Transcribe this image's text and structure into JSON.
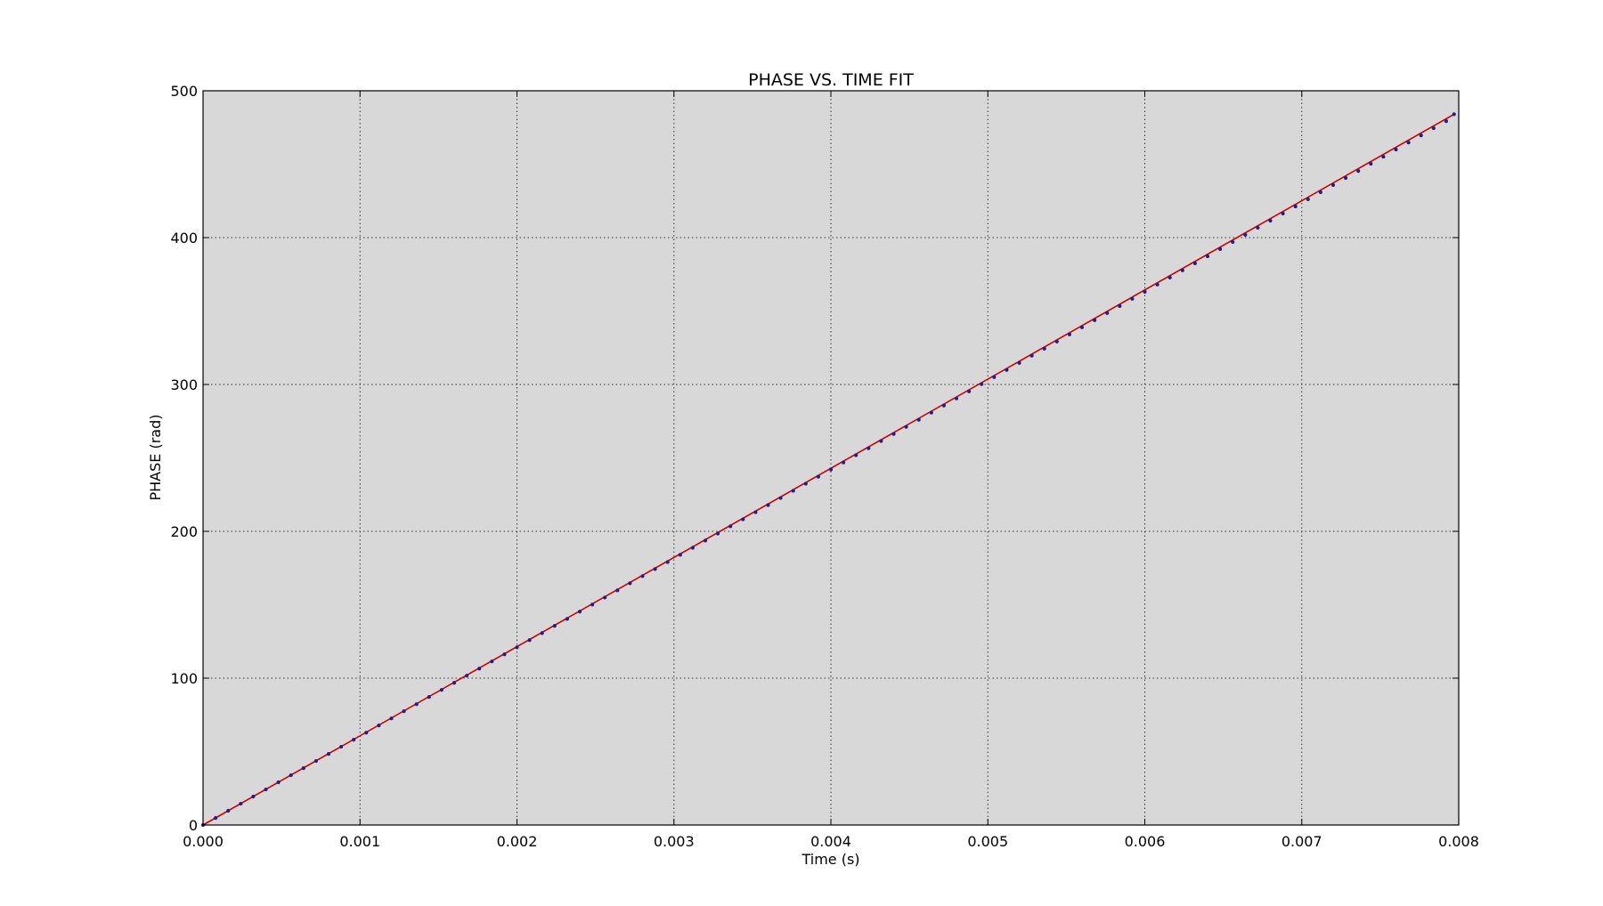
{
  "chart_data": {
    "type": "line",
    "title": "PHASE VS. TIME FIT",
    "xlabel": "Time (s)",
    "ylabel": "PHASE (rad)",
    "xlim": [
      0.0,
      0.008
    ],
    "ylim": [
      0,
      500
    ],
    "x_ticks": [
      "0.000",
      "0.001",
      "0.002",
      "0.003",
      "0.004",
      "0.005",
      "0.006",
      "0.007",
      "0.008"
    ],
    "y_ticks": [
      "0",
      "100",
      "200",
      "300",
      "400",
      "500"
    ],
    "grid": true,
    "background_color": "#d8d8d8",
    "series": [
      {
        "style": "points",
        "color": "#1f1f8f",
        "x": [
          0.0,
          8e-05,
          0.00016,
          0.00024,
          0.00032,
          0.0004,
          0.00048,
          0.00056,
          0.00064,
          0.00072,
          0.0008,
          0.00088,
          0.00096,
          0.00104,
          0.00112,
          0.0012,
          0.00128,
          0.00136,
          0.00144,
          0.00152,
          0.0016,
          0.00168,
          0.00176,
          0.00184,
          0.00192,
          0.002,
          0.00208,
          0.00216,
          0.00224,
          0.00232,
          0.0024,
          0.00248,
          0.00256,
          0.00264,
          0.00272,
          0.0028,
          0.00288,
          0.00296,
          0.00304,
          0.00312,
          0.0032,
          0.00328,
          0.00336,
          0.00344,
          0.00352,
          0.0036,
          0.00368,
          0.00376,
          0.00384,
          0.00392,
          0.004,
          0.00408,
          0.00416,
          0.00424,
          0.00432,
          0.0044,
          0.00448,
          0.00456,
          0.00464,
          0.00472,
          0.0048,
          0.00488,
          0.00496,
          0.00504,
          0.00512,
          0.0052,
          0.00528,
          0.00536,
          0.00544,
          0.00552,
          0.0056,
          0.00568,
          0.00576,
          0.00584,
          0.00592,
          0.006,
          0.00608,
          0.00616,
          0.00624,
          0.00632,
          0.0064,
          0.00648,
          0.00656,
          0.00664,
          0.00672,
          0.0068,
          0.00688,
          0.00696,
          0.00704,
          0.00712,
          0.0072,
          0.00728,
          0.00736,
          0.00744,
          0.00752,
          0.0076,
          0.00768,
          0.00776,
          0.00784,
          0.00792,
          0.00797
        ],
        "y": [
          0.0,
          4.8,
          9.7,
          14.5,
          19.4,
          24.2,
          29.1,
          33.9,
          38.7,
          43.6,
          48.4,
          53.3,
          58.1,
          62.9,
          67.8,
          72.6,
          77.5,
          82.3,
          87.2,
          92.0,
          96.8,
          101.7,
          106.5,
          111.4,
          116.2,
          121.0,
          125.9,
          130.7,
          135.6,
          140.4,
          145.3,
          150.1,
          154.9,
          159.8,
          164.6,
          169.5,
          174.3,
          179.1,
          184.0,
          188.8,
          193.7,
          198.5,
          203.4,
          208.2,
          213.0,
          217.9,
          222.7,
          227.6,
          232.4,
          237.2,
          242.1,
          246.9,
          251.8,
          256.6,
          261.5,
          266.3,
          271.1,
          276.0,
          280.8,
          285.7,
          290.5,
          295.3,
          300.2,
          305.0,
          309.9,
          314.7,
          319.6,
          324.4,
          329.2,
          334.1,
          338.9,
          343.8,
          348.6,
          353.4,
          358.3,
          363.1,
          368.0,
          372.8,
          377.7,
          382.5,
          387.3,
          392.2,
          397.0,
          401.9,
          406.7,
          411.5,
          416.4,
          421.2,
          426.1,
          430.9,
          435.8,
          440.6,
          445.4,
          450.3,
          455.1,
          460.0,
          464.8,
          469.6,
          474.5,
          479.3,
          484.0
        ]
      },
      {
        "style": "line",
        "color": "#cc0000",
        "x": [
          0.0,
          0.00797
        ],
        "y": [
          0.0,
          484.0
        ]
      }
    ]
  }
}
